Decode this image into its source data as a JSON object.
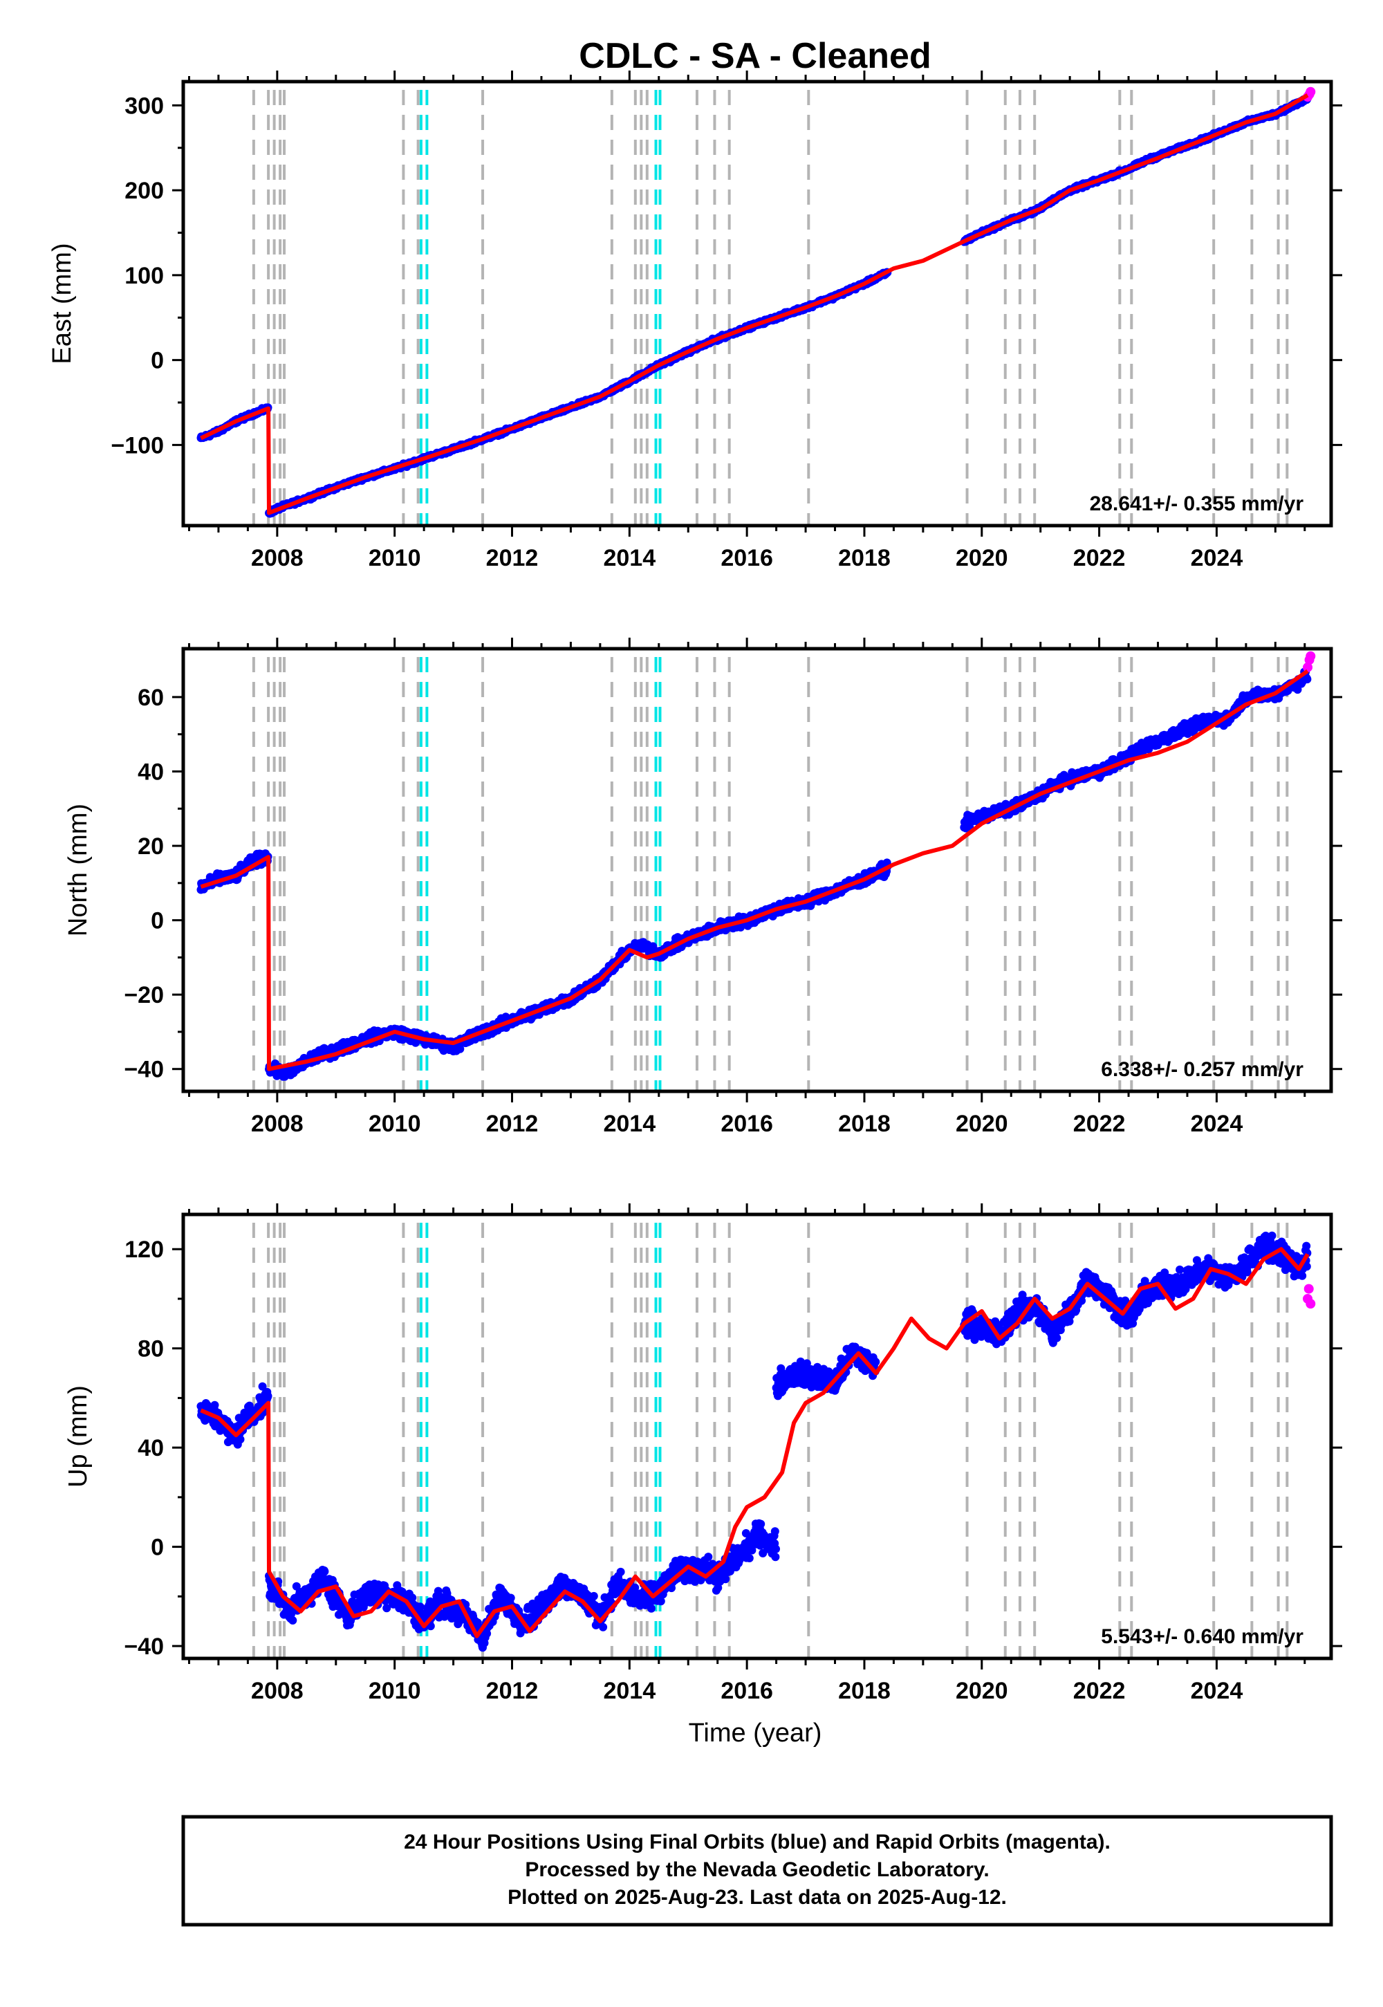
{
  "chart_data": {
    "type": "scatter",
    "title": "CDLC  - SA - Cleaned",
    "xlabel": "Time (year)",
    "xlim": [
      2006.4,
      2025.95
    ],
    "x_ticks": [
      2008,
      2010,
      2012,
      2014,
      2016,
      2018,
      2020,
      2022,
      2024
    ],
    "x_tick_labels": [
      "2008",
      "2010",
      "2012",
      "2014",
      "2016",
      "2018",
      "2020",
      "2022",
      "2024"
    ],
    "legend_colors": {
      "final_orbits": "#0000ff",
      "rapid_orbits": "#ff00ff",
      "model": "#ff0000",
      "equipment_change": "#b4b4b4",
      "earthquake": "#00e5e5"
    },
    "event_lines_gray": [
      2007.6,
      2007.85,
      2007.95,
      2008.05,
      2008.12,
      2010.15,
      2010.4,
      2011.5,
      2013.7,
      2014.1,
      2014.2,
      2014.3,
      2015.15,
      2015.45,
      2015.7,
      2017.05,
      2019.75,
      2020.4,
      2020.65,
      2020.9,
      2022.35,
      2022.55,
      2023.95,
      2024.6,
      2025.05,
      2025.2
    ],
    "event_lines_cyan": [
      2010.45,
      2010.55,
      2014.45,
      2014.52
    ],
    "panels": [
      {
        "ylabel": "East (mm)",
        "ylim": [
          -195,
          328
        ],
        "y_ticks": [
          -100,
          0,
          100,
          200,
          300
        ],
        "y_tick_labels": [
          "−100",
          "0",
          "100",
          "200",
          "300"
        ],
        "rate_text": "28.641+/- 0.355 mm/yr",
        "series": [
          {
            "x": [
              2006.7,
              2007.0,
              2007.3,
              2007.6,
              2007.85
            ],
            "y": [
              -92,
              -84,
              -72,
              -63,
              -57
            ]
          },
          {
            "x": [
              2007.86,
              2008.0,
              2008.5,
              2009.0,
              2009.5,
              2010.0,
              2010.5,
              2011.0,
              2011.5,
              2012.0,
              2012.5,
              2013.0,
              2013.5,
              2014.0,
              2014.5,
              2015.0,
              2015.5,
              2016.0,
              2016.5,
              2017.0,
              2017.5,
              2018.0,
              2018.4
            ],
            "y": [
              -180,
              -175,
              -163,
              -150,
              -138,
              -128,
              -116,
              -105,
              -93,
              -81,
              -68,
              -56,
              -43,
              -25,
              -6,
              10,
              25,
              38,
              50,
              62,
              75,
              90,
              103
            ]
          },
          {
            "x": [
              2019.7,
              2020.0,
              2020.5,
              2020.9,
              2021.2,
              2021.5,
              2022.0,
              2022.5,
              2022.8,
              2023.9,
              2024.2,
              2024.5,
              2025.0,
              2025.4,
              2025.55
            ],
            "y": [
              140,
              150,
              165,
              175,
              188,
              200,
              212,
              225,
              235,
              263,
              272,
              280,
              290,
              303,
              308
            ]
          }
        ],
        "rapid": {
          "x": [
            2025.55,
            2025.58,
            2025.6
          ],
          "y": [
            310,
            313,
            316
          ]
        },
        "model": {
          "x": [
            2006.7,
            2007.3,
            2007.85,
            2007.86,
            2008.5,
            2009.5,
            2010.5,
            2011.5,
            2012.5,
            2013.5,
            2014.0,
            2014.5,
            2015.0,
            2015.5,
            2016.0,
            2016.5,
            2017.0,
            2017.5,
            2018.0,
            2018.5,
            2019.0,
            2019.7,
            2020.5,
            2021.0,
            2021.5,
            2022.0,
            2022.5,
            2023.0,
            2023.5,
            2023.9,
            2024.5,
            2025.0,
            2025.55
          ],
          "y": [
            -92,
            -72,
            -57,
            -180,
            -163,
            -138,
            -116,
            -93,
            -68,
            -43,
            -25,
            -6,
            10,
            25,
            38,
            50,
            62,
            75,
            90,
            108,
            117,
            140,
            165,
            178,
            200,
            212,
            225,
            238,
            252,
            263,
            280,
            290,
            312
          ]
        }
      },
      {
        "ylabel": "North (mm)",
        "ylim": [
          -46,
          73
        ],
        "y_ticks": [
          -40,
          -20,
          0,
          20,
          40,
          60
        ],
        "y_tick_labels": [
          "−40",
          "−20",
          "0",
          "20",
          "40",
          "60"
        ],
        "rate_text": "6.338+/- 0.257 mm/yr",
        "series": [
          {
            "x": [
              2006.7,
              2007.0,
              2007.3,
              2007.6,
              2007.85
            ],
            "y": [
              9,
              11,
              12,
              16,
              17
            ]
          },
          {
            "x": [
              2007.86,
              2008.2,
              2008.6,
              2009.0,
              2009.5,
              2010.0,
              2010.5,
              2011.0,
              2011.5,
              2012.0,
              2012.5,
              2013.0,
              2013.5,
              2014.0,
              2014.2,
              2014.5,
              2015.0,
              2015.5,
              2016.0,
              2016.5,
              2017.0,
              2017.5,
              2018.0,
              2018.4
            ],
            "y": [
              -40,
              -41,
              -37,
              -35,
              -32,
              -30,
              -32,
              -34,
              -30,
              -27,
              -24,
              -21,
              -16,
              -8,
              -7,
              -9,
              -5,
              -2,
              0,
              3,
              5,
              8,
              11,
              14
            ]
          },
          {
            "x": [
              2019.7,
              2020.0,
              2020.5,
              2020.9,
              2021.2,
              2021.5,
              2022.0,
              2022.5,
              2022.8,
              2023.9,
              2024.2,
              2024.5,
              2025.0,
              2025.4,
              2025.55
            ],
            "y": [
              26,
              28,
              30,
              33,
              36,
              38,
              40,
              44,
              47,
              54,
              54,
              60,
              61,
              64,
              66
            ]
          }
        ],
        "rapid": {
          "x": [
            2025.55,
            2025.58,
            2025.6
          ],
          "y": [
            68,
            70,
            71
          ]
        },
        "model": {
          "x": [
            2006.7,
            2007.3,
            2007.85,
            2007.86,
            2008.5,
            2009.0,
            2009.5,
            2010.0,
            2010.5,
            2011.0,
            2011.5,
            2012.0,
            2012.5,
            2013.0,
            2013.5,
            2014.0,
            2014.3,
            2014.5,
            2015.0,
            2015.5,
            2016.0,
            2016.5,
            2017.0,
            2017.5,
            2018.0,
            2018.5,
            2019.0,
            2019.5,
            2020.0,
            2020.5,
            2021.0,
            2021.5,
            2022.0,
            2022.5,
            2023.0,
            2023.5,
            2024.0,
            2024.5,
            2025.0,
            2025.55
          ],
          "y": [
            9,
            12,
            17,
            -40,
            -38,
            -36,
            -33,
            -30,
            -32,
            -33,
            -30,
            -27,
            -24,
            -21,
            -16,
            -8,
            -10,
            -9,
            -5,
            -2,
            0,
            3,
            5,
            8,
            11,
            15,
            18,
            20,
            26,
            30,
            34,
            37,
            40,
            43,
            45,
            48,
            53,
            58,
            61,
            67
          ]
        }
      },
      {
        "ylabel": "Up (mm)",
        "ylim": [
          -45,
          134
        ],
        "y_ticks": [
          -40,
          0,
          40,
          80,
          120
        ],
        "y_tick_labels": [
          "−40",
          "0",
          "40",
          "80",
          "120"
        ],
        "rate_text": "5.543+/- 0.640 mm/yr",
        "series": [
          {
            "x": [
              2006.7,
              2007.0,
              2007.25,
              2007.5,
              2007.85
            ],
            "y": [
              54,
              52,
              44,
              52,
              60
            ]
          },
          {
            "x": [
              2007.86,
              2008.2,
              2008.5,
              2008.8,
              2009.2,
              2009.5,
              2009.8,
              2010.2,
              2010.5,
              2010.8,
              2011.2,
              2011.5,
              2011.8,
              2012.2,
              2012.5,
              2012.8,
              2013.2,
              2013.5,
              2013.8,
              2014.2,
              2014.5,
              2014.8,
              2015.2,
              2015.5,
              2015.8,
              2016.2,
              2016.5
            ],
            "y": [
              -15,
              -25,
              -20,
              -12,
              -28,
              -20,
              -18,
              -22,
              -30,
              -22,
              -28,
              -36,
              -20,
              -30,
              -25,
              -15,
              -20,
              -28,
              -15,
              -22,
              -18,
              -10,
              -8,
              -12,
              -5,
              5,
              0
            ]
          },
          {
            "x": [
              2016.5,
              2016.8,
              2017.2,
              2017.5,
              2017.8,
              2018.2
            ],
            "y": [
              65,
              70,
              68,
              66,
              78,
              72
            ]
          },
          {
            "x": [
              2019.7,
              2020.0,
              2020.3,
              2020.6,
              2020.9,
              2021.2,
              2021.5,
              2021.8,
              2022.2,
              2022.5,
              2022.8,
              2023.9,
              2024.2,
              2024.5,
              2024.8,
              2025.1,
              2025.4,
              2025.55
            ],
            "y": [
              92,
              88,
              85,
              95,
              98,
              86,
              95,
              108,
              100,
              92,
              102,
              112,
              108,
              114,
              122,
              118,
              112,
              118
            ]
          }
        ],
        "rapid": {
          "x": [
            2025.55,
            2025.57,
            2025.6
          ],
          "y": [
            100,
            104,
            98
          ]
        },
        "model": {
          "x": [
            2006.7,
            2007.0,
            2007.3,
            2007.6,
            2007.85,
            2007.86,
            2008.1,
            2008.4,
            2008.7,
            2009.0,
            2009.3,
            2009.6,
            2009.9,
            2010.2,
            2010.5,
            2010.8,
            2011.1,
            2011.4,
            2011.7,
            2012.0,
            2012.3,
            2012.6,
            2012.9,
            2013.2,
            2013.5,
            2013.8,
            2014.1,
            2014.4,
            2014.7,
            2015.0,
            2015.3,
            2015.6,
            2015.8,
            2016.0,
            2016.3,
            2016.6,
            2016.8,
            2017.0,
            2017.3,
            2017.6,
            2017.9,
            2018.2,
            2018.5,
            2018.8,
            2019.1,
            2019.4,
            2019.7,
            2020.0,
            2020.3,
            2020.6,
            2020.9,
            2021.2,
            2021.5,
            2021.8,
            2022.1,
            2022.4,
            2022.7,
            2023.0,
            2023.3,
            2023.6,
            2023.9,
            2024.2,
            2024.5,
            2024.8,
            2025.1,
            2025.4,
            2025.55
          ],
          "y": [
            55,
            52,
            45,
            52,
            58,
            -10,
            -20,
            -26,
            -18,
            -16,
            -28,
            -26,
            -18,
            -22,
            -32,
            -24,
            -22,
            -36,
            -26,
            -24,
            -34,
            -26,
            -18,
            -22,
            -30,
            -22,
            -12,
            -20,
            -14,
            -8,
            -12,
            -6,
            8,
            16,
            20,
            30,
            50,
            58,
            62,
            70,
            78,
            70,
            80,
            92,
            84,
            80,
            90,
            95,
            84,
            90,
            100,
            92,
            96,
            106,
            100,
            94,
            104,
            106,
            96,
            100,
            112,
            110,
            106,
            116,
            120,
            112,
            118
          ]
        }
      }
    ],
    "footnote_lines": [
      "24 Hour Positions Using Final Orbits (blue) and Rapid Orbits (magenta).",
      "Processed by the Nevada Geodetic Laboratory.",
      "Plotted on 2025-Aug-23. Last data on 2025-Aug-12."
    ]
  }
}
